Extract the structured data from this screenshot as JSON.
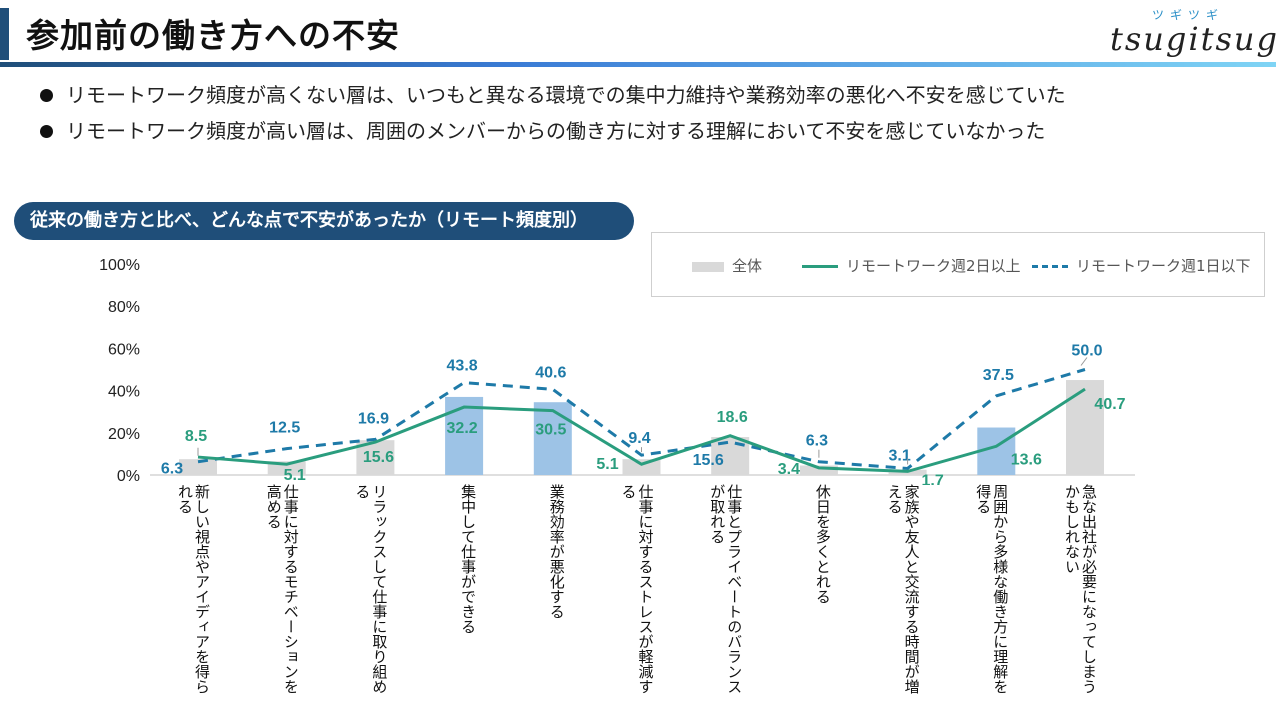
{
  "header": {
    "title": "参加前の働き方への不安",
    "logo_sub": "ツギツギ",
    "logo_main": "tsugitsugi"
  },
  "bullets": [
    "リモートワーク頻度が高くない層は、いつもと異なる環境での集中力維持や業務効率の悪化へ不安を感じていた",
    "リモートワーク頻度が高い層は、周囲のメンバーからの働き方に対する理解において不安を感じていなかった"
  ],
  "section_title": "従来の働き方と比べ、どんな点で不安があったか（リモート頻度別）",
  "colors": {
    "bar_gray": "#d9d9d9",
    "bar_blue": "#9dc3e6",
    "line_green": "#2a9d7e",
    "line_blue": "#1e7aa8",
    "label_green": "#2a9d7e",
    "label_blue": "#1e7aa8"
  },
  "chart_data": {
    "type": "bar",
    "ylim": [
      0,
      100
    ],
    "yticks": [
      "0%",
      "20%",
      "40%",
      "60%",
      "80%",
      "100%"
    ],
    "legend_position": "top-right",
    "grid": false,
    "categories": [
      "新しい視点やアイディアを得られる",
      "仕事に対するモチベーションを高める",
      "リラックスして仕事に取り組める",
      "集中して仕事ができる",
      "業務効率が悪化する",
      "仕事に対するストレスが軽減する",
      "仕事とプライベートのバランスが取れる",
      "休日を多くとれる",
      "家族や友人と交流する時間が増える",
      "周囲から多様な働き方に理解を得る",
      "急な出社が必要になってしまうかもしれない"
    ],
    "series": [
      {
        "name": "全体",
        "type": "bar",
        "values": [
          7.5,
          6.5,
          16.5,
          37.0,
          34.5,
          7.5,
          18.0,
          4.5,
          2.5,
          22.5,
          45.0
        ],
        "highlight": [
          false,
          false,
          false,
          true,
          true,
          false,
          false,
          false,
          false,
          true,
          false
        ]
      },
      {
        "name": "リモートワーク週2日以上",
        "type": "line",
        "values": [
          8.5,
          5.1,
          15.6,
          32.2,
          30.5,
          5.1,
          18.6,
          3.4,
          1.7,
          13.6,
          40.7
        ]
      },
      {
        "name": "リモートワーク週1日以下",
        "type": "line-dashed",
        "values": [
          6.3,
          12.5,
          16.9,
          43.8,
          40.6,
          9.4,
          15.6,
          6.3,
          3.1,
          37.5,
          50.0
        ]
      }
    ],
    "labels_green": [
      "8.5",
      "5.1",
      "15.6",
      "32.2",
      "30.5",
      "5.1",
      "18.6",
      "3.4",
      "1.7",
      "13.6",
      "40.7"
    ],
    "labels_blue": [
      "6.3",
      "12.5",
      "16.9",
      "43.8",
      "40.6",
      "9.4",
      "15.6",
      "6.3",
      "3.1",
      "37.5",
      "50.0"
    ]
  }
}
